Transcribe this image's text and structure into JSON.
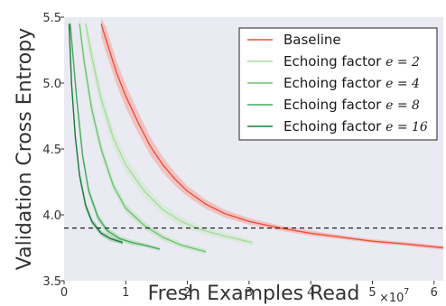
{
  "chart_data": {
    "type": "line",
    "title": "",
    "xlabel": "Fresh Examples Read",
    "ylabel": "Validation Cross Entropy",
    "x_exponent_label": "×10",
    "x_exponent_power": "7",
    "xlim": [
      0,
      61500000.0
    ],
    "ylim": [
      3.5,
      5.5
    ],
    "x_ticks": [
      {
        "value": 0,
        "label": "0"
      },
      {
        "value": 10000000.0,
        "label": "1"
      },
      {
        "value": 20000000.0,
        "label": "2"
      },
      {
        "value": 30000000.0,
        "label": "3"
      },
      {
        "value": 40000000.0,
        "label": "4"
      },
      {
        "value": 50000000.0,
        "label": "5"
      },
      {
        "value": 60000000.0,
        "label": "6"
      }
    ],
    "y_ticks": [
      {
        "value": 3.5,
        "label": "3.5"
      },
      {
        "value": 4.0,
        "label": "4.0"
      },
      {
        "value": 4.5,
        "label": "4.5"
      },
      {
        "value": 5.0,
        "label": "5.0"
      },
      {
        "value": 5.5,
        "label": "5.5"
      }
    ],
    "grid": false,
    "background": "#eaeaf2",
    "legend_position": "top-right",
    "reference_line": {
      "y": 3.9,
      "style": "dashed",
      "color": "#222222"
    },
    "series": [
      {
        "name": "Baseline",
        "math": "",
        "color": "#f04e3a",
        "band_color": "#f4a8a0",
        "x": [
          6000000.0,
          7000000.0,
          8500000.0,
          10000000.0,
          12000000.0,
          14000000.0,
          16000000.0,
          18000000.0,
          20000000.0,
          23000000.0,
          26000000.0,
          30000000.0,
          35000000.0,
          40000000.0,
          45000000.0,
          50000000.0,
          55000000.0,
          61500000.0
        ],
        "values": [
          5.45,
          5.3,
          5.08,
          4.9,
          4.7,
          4.52,
          4.38,
          4.27,
          4.18,
          4.08,
          4.01,
          3.95,
          3.9,
          3.86,
          3.83,
          3.8,
          3.78,
          3.75
        ],
        "band": [
          0.1,
          0.1,
          0.09,
          0.09,
          0.08,
          0.07,
          0.06,
          0.05,
          0.04,
          0.035,
          0.03,
          0.025,
          0.02,
          0.02,
          0.015,
          0.015,
          0.015,
          0.015
        ]
      },
      {
        "name": "Echoing factor ",
        "math": "e = 2",
        "color": "#a8dba0",
        "band_color": "#cfeacb",
        "x": [
          3500000.0,
          4500000.0,
          6000000.0,
          8000000.0,
          10000000.0,
          13000000.0,
          16000000.0,
          19000000.0,
          22000000.0,
          26000000.0,
          30500000.0
        ],
        "values": [
          5.45,
          5.2,
          4.88,
          4.58,
          4.38,
          4.18,
          4.04,
          3.95,
          3.89,
          3.84,
          3.79
        ],
        "band": [
          0.1,
          0.09,
          0.08,
          0.07,
          0.06,
          0.05,
          0.04,
          0.035,
          0.03,
          0.025,
          0.02
        ]
      },
      {
        "name": "Echoing factor ",
        "math": "e = 4",
        "color": "#73c476",
        "band_color": "#bfe3bf",
        "x": [
          2500000.0,
          3300000.0,
          4500000.0,
          6000000.0,
          8000000.0,
          10000000.0,
          13000000.0,
          16000000.0,
          19000000.0,
          23000000.0
        ],
        "values": [
          5.45,
          5.15,
          4.8,
          4.5,
          4.22,
          4.05,
          3.92,
          3.83,
          3.77,
          3.72
        ],
        "band": [
          0.08,
          0.07,
          0.06,
          0.05,
          0.04,
          0.035,
          0.03,
          0.025,
          0.02,
          0.02
        ]
      },
      {
        "name": "Echoing factor ",
        "math": "e = 8",
        "color": "#41ab5d",
        "band_color": "#a9d8b0",
        "x": [
          1000000.0,
          2000000.0,
          3000000.0,
          4000000.0,
          5500000.0,
          7000000.0,
          9000000.0,
          11000000.0,
          13000000.0,
          15500000.0
        ],
        "values": [
          5.45,
          4.9,
          4.45,
          4.18,
          3.98,
          3.88,
          3.82,
          3.79,
          3.77,
          3.74
        ],
        "band": [
          0.06,
          0.05,
          0.04,
          0.035,
          0.03,
          0.025,
          0.02,
          0.02,
          0.015,
          0.015
        ]
      },
      {
        "name": "Echoing factor ",
        "math": "e = 16",
        "color": "#1b7a3a",
        "band_color": "#8fc79d",
        "x": [
          800000.0,
          1200000.0,
          1800000.0,
          2500000.0,
          3500000.0,
          4500000.0,
          6000000.0,
          7500000.0,
          9500000.0
        ],
        "values": [
          5.45,
          5.0,
          4.6,
          4.3,
          4.07,
          3.95,
          3.86,
          3.82,
          3.79
        ],
        "band": [
          0.05,
          0.045,
          0.04,
          0.035,
          0.03,
          0.025,
          0.02,
          0.02,
          0.015
        ]
      }
    ]
  }
}
